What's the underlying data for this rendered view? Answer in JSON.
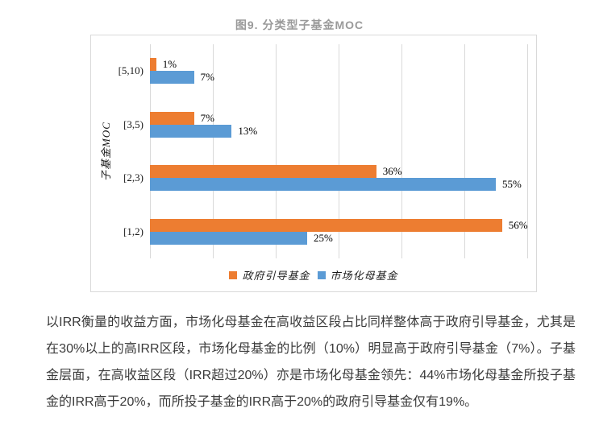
{
  "figure": {
    "title": "图9. 分类型子基金MOC"
  },
  "chart_data": {
    "type": "bar",
    "orientation": "horizontal",
    "title": "图9. 分类型子基金MOC",
    "ylabel": "子基金MOC",
    "xlabel": "",
    "categories": [
      "[5,10)",
      "[3,5)",
      "[2,3)",
      "[1,2)"
    ],
    "series": [
      {
        "name": "政府引导基金",
        "color": "#ED7D31",
        "values": [
          1,
          7,
          36,
          56
        ]
      },
      {
        "name": "市场化母基金",
        "color": "#5B9BD5",
        "values": [
          7,
          13,
          55,
          25
        ]
      }
    ],
    "value_suffix": "%",
    "xlim": [
      0,
      60
    ],
    "grid_step": 10,
    "grid": true,
    "axis_tick_labels_visible": false,
    "data_labels": true,
    "legend_position": "bottom"
  },
  "paragraph": {
    "text": "以IRR衡量的收益方面，市场化母基金在高收益区段占比同样整体高于政府引导基金，尤其是在30%以上的高IRR区段，市场化母基金的比例（10%）明显高于政府引导基金（7%）。子基金层面，在高收益区段（IRR超过20%）亦是市场化母基金领先：44%市场化母基金所投子基金的IRR高于20%，而所投子基金的IRR高于20%的政府引导基金仅有19%。"
  }
}
